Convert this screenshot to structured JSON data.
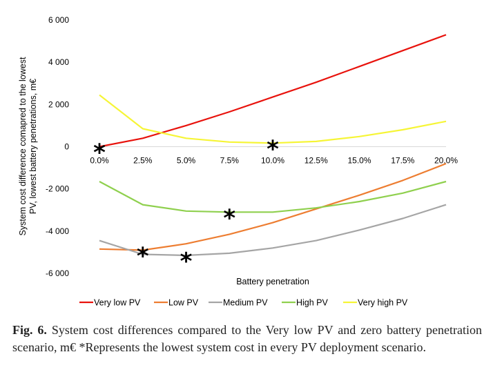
{
  "chart_data": {
    "type": "line",
    "title": "",
    "xlabel": "Battery penetration",
    "ylabel": "System cost difference comapred to the lowest PV, lowest battery penetrations, m€",
    "categories": [
      "0.0%",
      "2.5%",
      "5.0%",
      "7.5%",
      "10.0%",
      "12.5%",
      "15.0%",
      "17.5%",
      "20.0%"
    ],
    "x": [
      0.0,
      2.5,
      5.0,
      7.5,
      10.0,
      12.5,
      15.0,
      17.5,
      20.0
    ],
    "ylim": [
      -6000,
      6000
    ],
    "yticks": [
      6000,
      4000,
      2000,
      0,
      -2000,
      -4000,
      -6000
    ],
    "ytick_labels": [
      "6 000",
      "4 000",
      "2 000",
      "0",
      "-2 000",
      "-4 000",
      "-6 000"
    ],
    "grid": false,
    "legend_position": "bottom",
    "series": [
      {
        "name": "Very low PV",
        "color": "#e8120c",
        "values": [
          0,
          400,
          1000,
          1650,
          2350,
          3050,
          3800,
          4550,
          5300
        ],
        "min_index": 0
      },
      {
        "name": "Low PV",
        "color": "#ed7d31",
        "values": [
          -4850,
          -4900,
          -4600,
          -4150,
          -3600,
          -2950,
          -2300,
          -1600,
          -800
        ],
        "min_index": 1
      },
      {
        "name": "Medium PV",
        "color": "#a5a5a5",
        "values": [
          -4450,
          -5100,
          -5150,
          -5050,
          -4800,
          -4450,
          -3950,
          -3400,
          -2750
        ],
        "min_index": 2
      },
      {
        "name": "High PV",
        "color": "#8fd04e",
        "values": [
          -1650,
          -2750,
          -3050,
          -3100,
          -3100,
          -2900,
          -2600,
          -2200,
          -1650
        ],
        "min_index": 3
      },
      {
        "name": "Very high PV",
        "color": "#f6f536",
        "values": [
          2450,
          850,
          400,
          220,
          170,
          250,
          480,
          800,
          1200
        ],
        "min_index": 4
      }
    ],
    "markers": {
      "symbol": "*"
    }
  },
  "caption": {
    "label": "Fig. 6.",
    "text": "System cost differences compared to the Very low PV and zero battery penetration scenario, m€ *Represents the lowest system cost in every PV deployment scenario."
  }
}
